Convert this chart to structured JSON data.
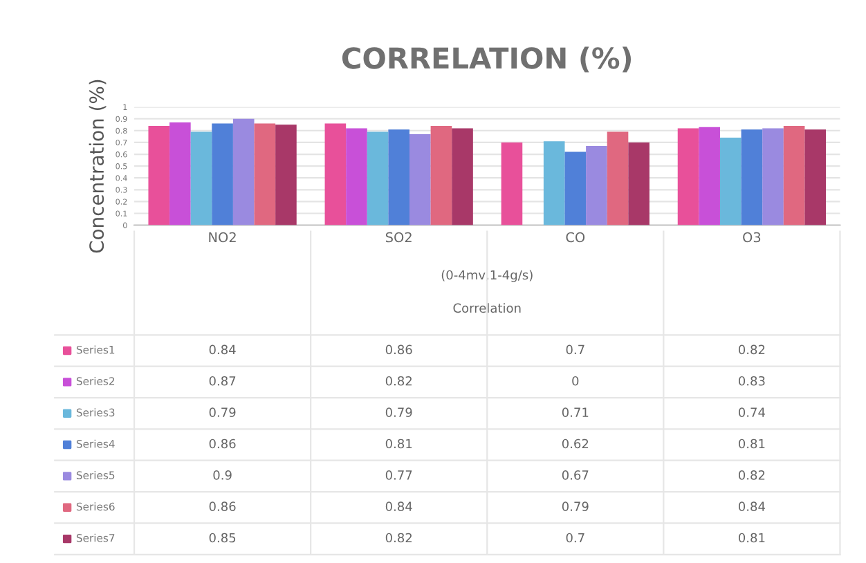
{
  "chart_data": {
    "type": "bar",
    "title": "CORRELATION (%)",
    "ylabel": "Concentration (%)",
    "annotations": [
      "(0-4mv,1-4g/s)",
      "Correlation"
    ],
    "categories": [
      "NO2",
      "SO2",
      "CO",
      "O3"
    ],
    "ylim": [
      0,
      1
    ],
    "yticks": [
      0,
      0.1,
      0.2,
      0.3,
      0.4,
      0.5,
      0.6,
      0.7,
      0.8,
      0.9,
      1
    ],
    "grid": "y",
    "data_labels": true,
    "legend": "bottom",
    "series": [
      {
        "name": "Series1",
        "color": "#e8509a",
        "values": [
          0.84,
          0.86,
          0.7,
          0.82
        ]
      },
      {
        "name": "Series2",
        "color": "#c850d8",
        "values": [
          0.87,
          0.82,
          0,
          0.83
        ]
      },
      {
        "name": "Series3",
        "color": "#6ab8dc",
        "values": [
          0.79,
          0.79,
          0.71,
          0.74
        ]
      },
      {
        "name": "Series4",
        "color": "#5080d8",
        "values": [
          0.86,
          0.81,
          0.62,
          0.81
        ]
      },
      {
        "name": "Series5",
        "color": "#9a8ae0",
        "values": [
          0.9,
          0.77,
          0.67,
          0.82
        ]
      },
      {
        "name": "Series6",
        "color": "#e06880",
        "values": [
          0.86,
          0.84,
          0.79,
          0.84
        ]
      },
      {
        "name": "Series7",
        "color": "#a83868",
        "values": [
          0.85,
          0.82,
          0.7,
          0.81
        ]
      }
    ]
  }
}
